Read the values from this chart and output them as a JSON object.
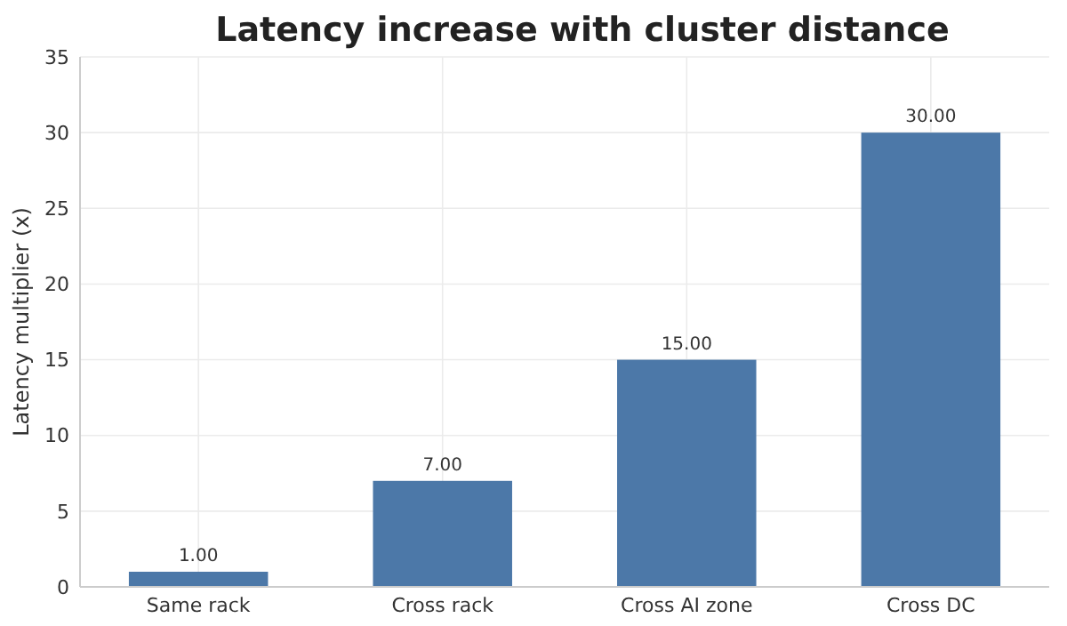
{
  "chart_data": {
    "type": "bar",
    "title": "Latency increase with cluster distance",
    "ylabel": "Latency multiplier (x)",
    "categories": [
      "Same rack",
      "Cross rack",
      "Cross AI zone",
      "Cross DC"
    ],
    "values": [
      1,
      7,
      15,
      30
    ],
    "color": "#4c78a8",
    "data_labels": true,
    "value_labels": [
      "1.00",
      "7.00",
      "15.00",
      "30.00"
    ],
    "ylim": [
      0,
      35
    ],
    "yticks": [
      0,
      5,
      10,
      15,
      20,
      25,
      30,
      35
    ],
    "grid": true
  }
}
